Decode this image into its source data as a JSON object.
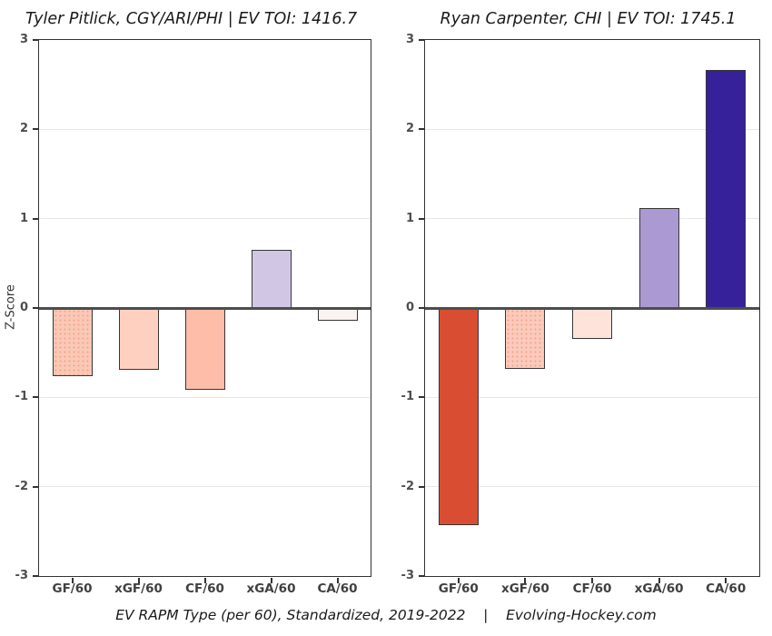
{
  "page": {
    "background": "#ffffff",
    "caption": "EV RAPM Type (per 60), Standardized, 2019-2022    |    Evolving-Hockey.com"
  },
  "colors": {
    "axis": "#333333",
    "zero_line": "#4d4d4d",
    "gridline": "#e8e8e8",
    "y_tick_label": "#4d4d4d",
    "x_tick_label": "#404040",
    "title": "#1a1a1a",
    "bar_border": "#363636"
  },
  "chart_data": [
    {
      "type": "bar",
      "title": "Tyler Pitlick, CGY/ARI/PHI  |  EV TOI: 1416.7",
      "ylabel": "Z-Score",
      "xlabel": "",
      "categories": [
        "GF/60",
        "xGF/60",
        "CF/60",
        "xGA/60",
        "CA/60"
      ],
      "values": [
        -0.76,
        -0.69,
        -0.92,
        0.65,
        -0.14
      ],
      "bar_colors": [
        "#fbc8b6",
        "#fed0c0",
        "#fdbda9",
        "#d1c7e5",
        "#faf3f1"
      ],
      "bar_patterns": [
        "dots",
        null,
        null,
        null,
        null
      ],
      "ylim": [
        -3,
        3
      ],
      "yticks": [
        3,
        2,
        1,
        0,
        -1,
        -2,
        -3
      ],
      "grid": true,
      "legend": "none"
    },
    {
      "type": "bar",
      "title": "Ryan Carpenter, CHI  |  EV TOI: 1745.1",
      "ylabel": "",
      "xlabel": "",
      "categories": [
        "GF/60",
        "xGF/60",
        "CF/60",
        "xGA/60",
        "CA/60"
      ],
      "values": [
        -2.43,
        -0.68,
        -0.35,
        1.12,
        2.66
      ],
      "bar_colors": [
        "#d94e32",
        "#fcc9ba",
        "#fde3da",
        "#ab99d2",
        "#37219a"
      ],
      "bar_patterns": [
        null,
        "dots",
        null,
        null,
        null
      ],
      "ylim": [
        -3,
        3
      ],
      "yticks": [
        3,
        2,
        1,
        0,
        -1,
        -2,
        -3
      ],
      "grid": true,
      "legend": "none"
    }
  ]
}
